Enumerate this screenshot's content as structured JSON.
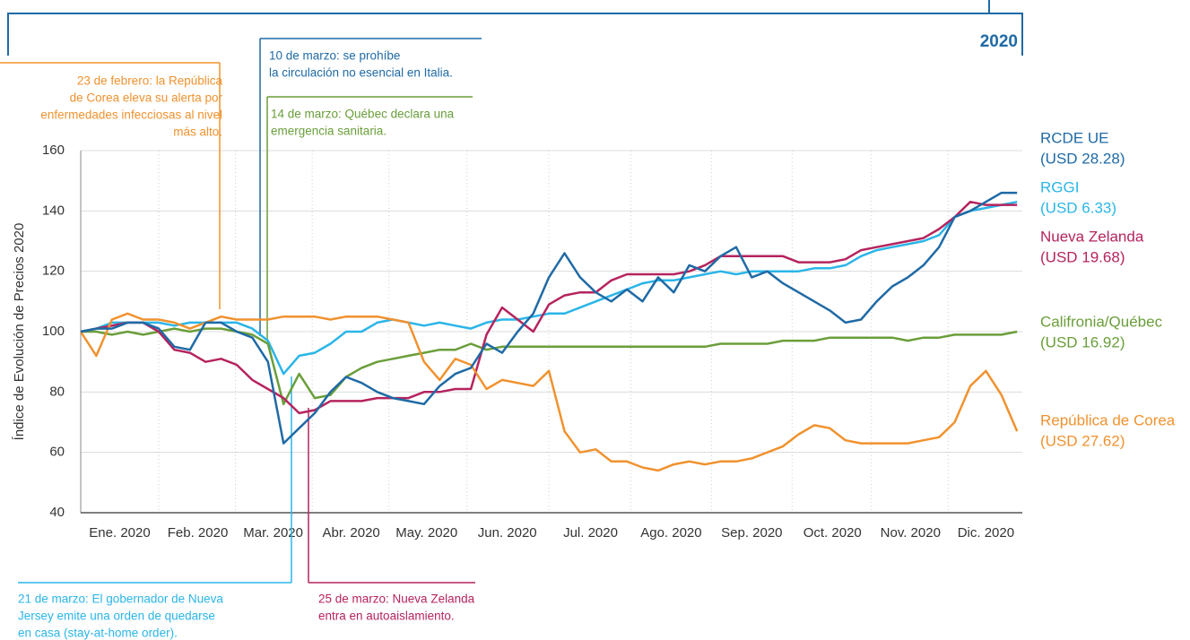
{
  "chart_data": {
    "type": "line",
    "period": "2020",
    "y_label": "Índice de Evolución de Precios 2020",
    "xlim": [
      0,
      362
    ],
    "ylim": [
      40,
      160
    ],
    "yticks": [
      40,
      60,
      80,
      100,
      120,
      140,
      160
    ],
    "grid": true,
    "xticks": [
      {
        "value": 15,
        "label": "Ene. 2020"
      },
      {
        "value": 45,
        "label": "Feb. 2020"
      },
      {
        "value": 74,
        "label": "Mar. 2020"
      },
      {
        "value": 104,
        "label": "Abr. 2020"
      },
      {
        "value": 133,
        "label": "May. 2020"
      },
      {
        "value": 164,
        "label": "Jun. 2020"
      },
      {
        "value": 196,
        "label": "Jul. 2020"
      },
      {
        "value": 227,
        "label": "Ago. 2020"
      },
      {
        "value": 258,
        "label": "Sep. 2020"
      },
      {
        "value": 289,
        "label": "Oct. 2020"
      },
      {
        "value": 319,
        "label": "Nov. 2020"
      },
      {
        "value": 348,
        "label": "Dic. 2020"
      }
    ],
    "x": [
      0,
      6,
      12,
      18,
      24,
      30,
      36,
      42,
      48,
      54,
      60,
      66,
      72,
      78,
      84,
      90,
      96,
      102,
      108,
      114,
      120,
      126,
      132,
      138,
      144,
      150,
      156,
      162,
      168,
      174,
      180,
      186,
      192,
      198,
      204,
      210,
      216,
      222,
      228,
      234,
      240,
      246,
      252,
      258,
      264,
      270,
      276,
      282,
      288,
      294,
      300,
      306,
      312,
      318,
      324,
      330,
      336,
      342,
      348,
      354,
      360
    ],
    "series": [
      {
        "name": "RGGI",
        "price_label": "(USD 6.33)",
        "color": "#2bb5e8",
        "values": [
          100,
          101,
          103,
          103,
          103,
          103,
          102,
          103,
          103,
          103,
          103,
          101,
          97,
          86,
          92,
          93,
          96,
          100,
          100,
          103,
          104,
          103,
          102,
          103,
          102,
          101,
          103,
          104,
          104,
          105,
          106,
          106,
          108,
          110,
          112,
          114,
          116,
          117,
          117,
          118,
          119,
          120,
          119,
          120,
          120,
          120,
          120,
          121,
          121,
          122,
          125,
          127,
          128,
          129,
          130,
          132,
          138,
          140,
          141,
          142,
          143
        ]
      },
      {
        "name": "Califronia/Québec",
        "price_label": "(USD 16.92)",
        "color": "#6a9e3a",
        "values": [
          100,
          100,
          99,
          100,
          99,
          100,
          101,
          100,
          101,
          101,
          100,
          99,
          96,
          76,
          86,
          78,
          79,
          85,
          88,
          90,
          91,
          92,
          93,
          94,
          94,
          96,
          94,
          95,
          95,
          95,
          95,
          95,
          95,
          95,
          95,
          95,
          95,
          95,
          95,
          95,
          95,
          96,
          96,
          96,
          96,
          97,
          97,
          97,
          98,
          98,
          98,
          98,
          98,
          97,
          98,
          98,
          99,
          99,
          99,
          99,
          100
        ]
      },
      {
        "name": "Nueva Zelanda",
        "price_label": "(USD 19.68)",
        "color": "#b5245e",
        "values": [
          100,
          101,
          102,
          103,
          103,
          100,
          94,
          93,
          90,
          91,
          89,
          84,
          81,
          78,
          73,
          74,
          77,
          77,
          77,
          78,
          78,
          78,
          80,
          80,
          81,
          81,
          99,
          108,
          104,
          100,
          109,
          112,
          113,
          113,
          117,
          119,
          119,
          119,
          119,
          120,
          122,
          125,
          125,
          125,
          125,
          125,
          123,
          123,
          123,
          124,
          127,
          128,
          129,
          130,
          131,
          134,
          138,
          143,
          142,
          142,
          142
        ]
      },
      {
        "name": "República de Corea",
        "price_label": "(USD 27.62)",
        "color": "#f0922f",
        "values": [
          100,
          92,
          104,
          106,
          104,
          104,
          103,
          101,
          103,
          105,
          104,
          104,
          104,
          105,
          105,
          105,
          104,
          105,
          105,
          105,
          104,
          103,
          90,
          84,
          91,
          89,
          81,
          84,
          83,
          82,
          87,
          67,
          60,
          61,
          57,
          57,
          55,
          54,
          56,
          57,
          56,
          57,
          57,
          58,
          60,
          62,
          66,
          69,
          68,
          64,
          63,
          63,
          63,
          63,
          64,
          65,
          70,
          82,
          87,
          79,
          67
        ]
      },
      {
        "name": "RCDE UE",
        "price_label": "(USD 28.28)",
        "color": "#1f6aa5",
        "values": [
          100,
          101,
          101,
          103,
          103,
          101,
          95,
          94,
          103,
          103,
          100,
          98,
          90,
          63,
          68,
          73,
          80,
          85,
          83,
          80,
          78,
          77,
          76,
          82,
          86,
          88,
          96,
          93,
          100,
          106,
          118,
          126,
          118,
          113,
          110,
          114,
          110,
          118,
          113,
          122,
          120,
          125,
          128,
          118,
          120,
          116,
          113,
          110,
          107,
          103,
          104,
          110,
          115,
          118,
          122,
          128,
          138,
          140,
          143,
          146,
          146
        ]
      }
    ],
    "annotations": [
      {
        "lines": [
          "23 de febrero: la República",
          "de Corea eleva su alerta por",
          "enfermedades infecciosas al nivel",
          "más alto."
        ],
        "color": "#f0922f"
      },
      {
        "lines": [
          "10 de marzo: se prohíbe",
          "la circulación no esencial en Italia."
        ],
        "color": "#1f6aa5"
      },
      {
        "lines": [
          "14 de marzo: Québec declara una",
          "emergencia sanitaria."
        ],
        "color": "#6a9e3a"
      },
      {
        "lines": [
          "21 de marzo: El gobernador de Nueva",
          "Jersey emite una orden de quedarse",
          "en casa (stay-at-home order)."
        ],
        "color": "#2bb5e8"
      },
      {
        "lines": [
          "25 de marzo: Nueva Zelanda",
          "entra en autoaislamiento."
        ],
        "color": "#b5245e"
      }
    ]
  }
}
